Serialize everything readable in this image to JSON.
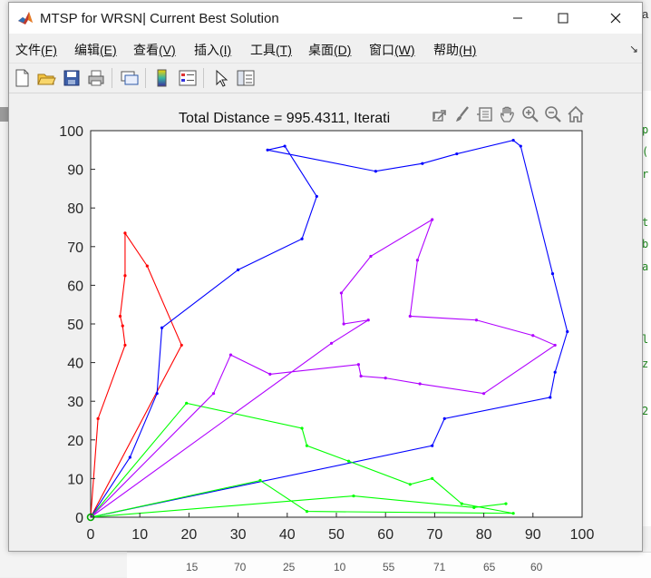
{
  "window": {
    "title": "MTSP for WRSN| Current Best Solution"
  },
  "menu": [
    {
      "label": "文件",
      "key": "(F)"
    },
    {
      "label": "编辑",
      "key": "(E)"
    },
    {
      "label": "查看",
      "key": "(V)"
    },
    {
      "label": "插入",
      "key": "(I)"
    },
    {
      "label": "工具",
      "key": "(T)"
    },
    {
      "label": "桌面",
      "key": "(D)"
    },
    {
      "label": "窗口",
      "key": "(W)"
    },
    {
      "label": "帮助",
      "key": "(H)"
    }
  ],
  "toolbar_icons": [
    "new-figure-icon",
    "open-file-icon",
    "save-icon",
    "print-icon",
    "link-plot-icon",
    "colorbar-icon",
    "legend-icon",
    "edit-plot-icon",
    "property-inspector-icon"
  ],
  "axes_toolbar_icons": [
    "export-icon",
    "brush-icon",
    "data-tips-icon",
    "pan-icon",
    "zoom-in-icon",
    "zoom-out-icon",
    "home-icon"
  ],
  "background": {
    "code_chars": [
      "p",
      "(",
      "r",
      "t",
      "b",
      "a",
      "l",
      "z",
      "2"
    ],
    "bottom_numbers": [
      "15",
      "70",
      "25",
      "10",
      "55",
      "71",
      "65",
      "60"
    ],
    "top_right_text": "a"
  },
  "chart_data": {
    "type": "line",
    "title": "Total Distance = 995.4311, Iterati",
    "xlabel": "",
    "ylabel": "",
    "xlim": [
      0,
      100
    ],
    "ylim": [
      0,
      100
    ],
    "xticks": [
      0,
      10,
      20,
      30,
      40,
      50,
      60,
      70,
      80,
      90,
      100
    ],
    "yticks": [
      0,
      10,
      20,
      30,
      40,
      50,
      60,
      70,
      80,
      90,
      100
    ],
    "grid": false,
    "depot": [
      0,
      0
    ],
    "series": [
      {
        "color": "#ff0000",
        "points": [
          [
            0,
            0
          ],
          [
            1.5,
            25.5
          ],
          [
            7,
            44.5
          ],
          [
            6.5,
            49.5
          ],
          [
            6,
            52
          ],
          [
            7,
            62.5
          ],
          [
            7,
            73.5
          ],
          [
            11.5,
            65
          ],
          [
            18.5,
            44.5
          ],
          [
            0,
            0
          ]
        ]
      },
      {
        "color": "#0000ff",
        "points": [
          [
            0,
            0
          ],
          [
            8,
            15.5
          ],
          [
            13.5,
            32
          ],
          [
            14.5,
            49
          ],
          [
            30,
            64
          ],
          [
            43,
            72
          ],
          [
            46,
            83
          ],
          [
            39.5,
            96
          ],
          [
            36,
            95
          ],
          [
            58,
            89.5
          ],
          [
            67.5,
            91.5
          ],
          [
            74.5,
            94
          ],
          [
            86,
            97.5
          ],
          [
            87.5,
            96
          ],
          [
            94,
            63
          ],
          [
            97,
            48
          ],
          [
            94.5,
            37.5
          ],
          [
            93.5,
            31
          ],
          [
            72,
            25.5
          ],
          [
            69.5,
            18.5
          ],
          [
            0,
            0
          ]
        ]
      },
      {
        "color": "#00ff00",
        "points": [
          [
            0,
            0
          ],
          [
            19.5,
            29.5
          ],
          [
            43,
            23
          ],
          [
            44,
            18.5
          ],
          [
            52.5,
            14.5
          ],
          [
            65,
            8.5
          ],
          [
            69.5,
            10
          ],
          [
            75.5,
            3.5
          ],
          [
            86,
            1
          ],
          [
            44,
            1.5
          ],
          [
            34.5,
            9.5
          ],
          [
            0,
            0
          ]
        ]
      },
      {
        "color": "#00ff00",
        "points": [
          [
            0,
            0
          ],
          [
            53.5,
            5.5
          ],
          [
            78,
            2.5
          ],
          [
            84.5,
            3.5
          ]
        ]
      },
      {
        "color": "#b000ff",
        "points": [
          [
            0,
            0
          ],
          [
            25,
            32
          ],
          [
            28.5,
            42
          ],
          [
            36.5,
            37
          ],
          [
            54.5,
            39.5
          ],
          [
            55,
            36.5
          ],
          [
            60,
            36
          ],
          [
            67,
            34.5
          ],
          [
            80,
            32
          ],
          [
            94.5,
            44.5
          ],
          [
            90,
            47
          ],
          [
            78.5,
            51
          ],
          [
            65,
            52
          ],
          [
            66.5,
            66.5
          ],
          [
            69.5,
            77
          ],
          [
            57,
            67.5
          ],
          [
            51,
            58
          ],
          [
            51.5,
            50
          ],
          [
            56.5,
            51
          ],
          [
            49,
            45
          ],
          [
            0,
            0
          ]
        ]
      }
    ]
  }
}
